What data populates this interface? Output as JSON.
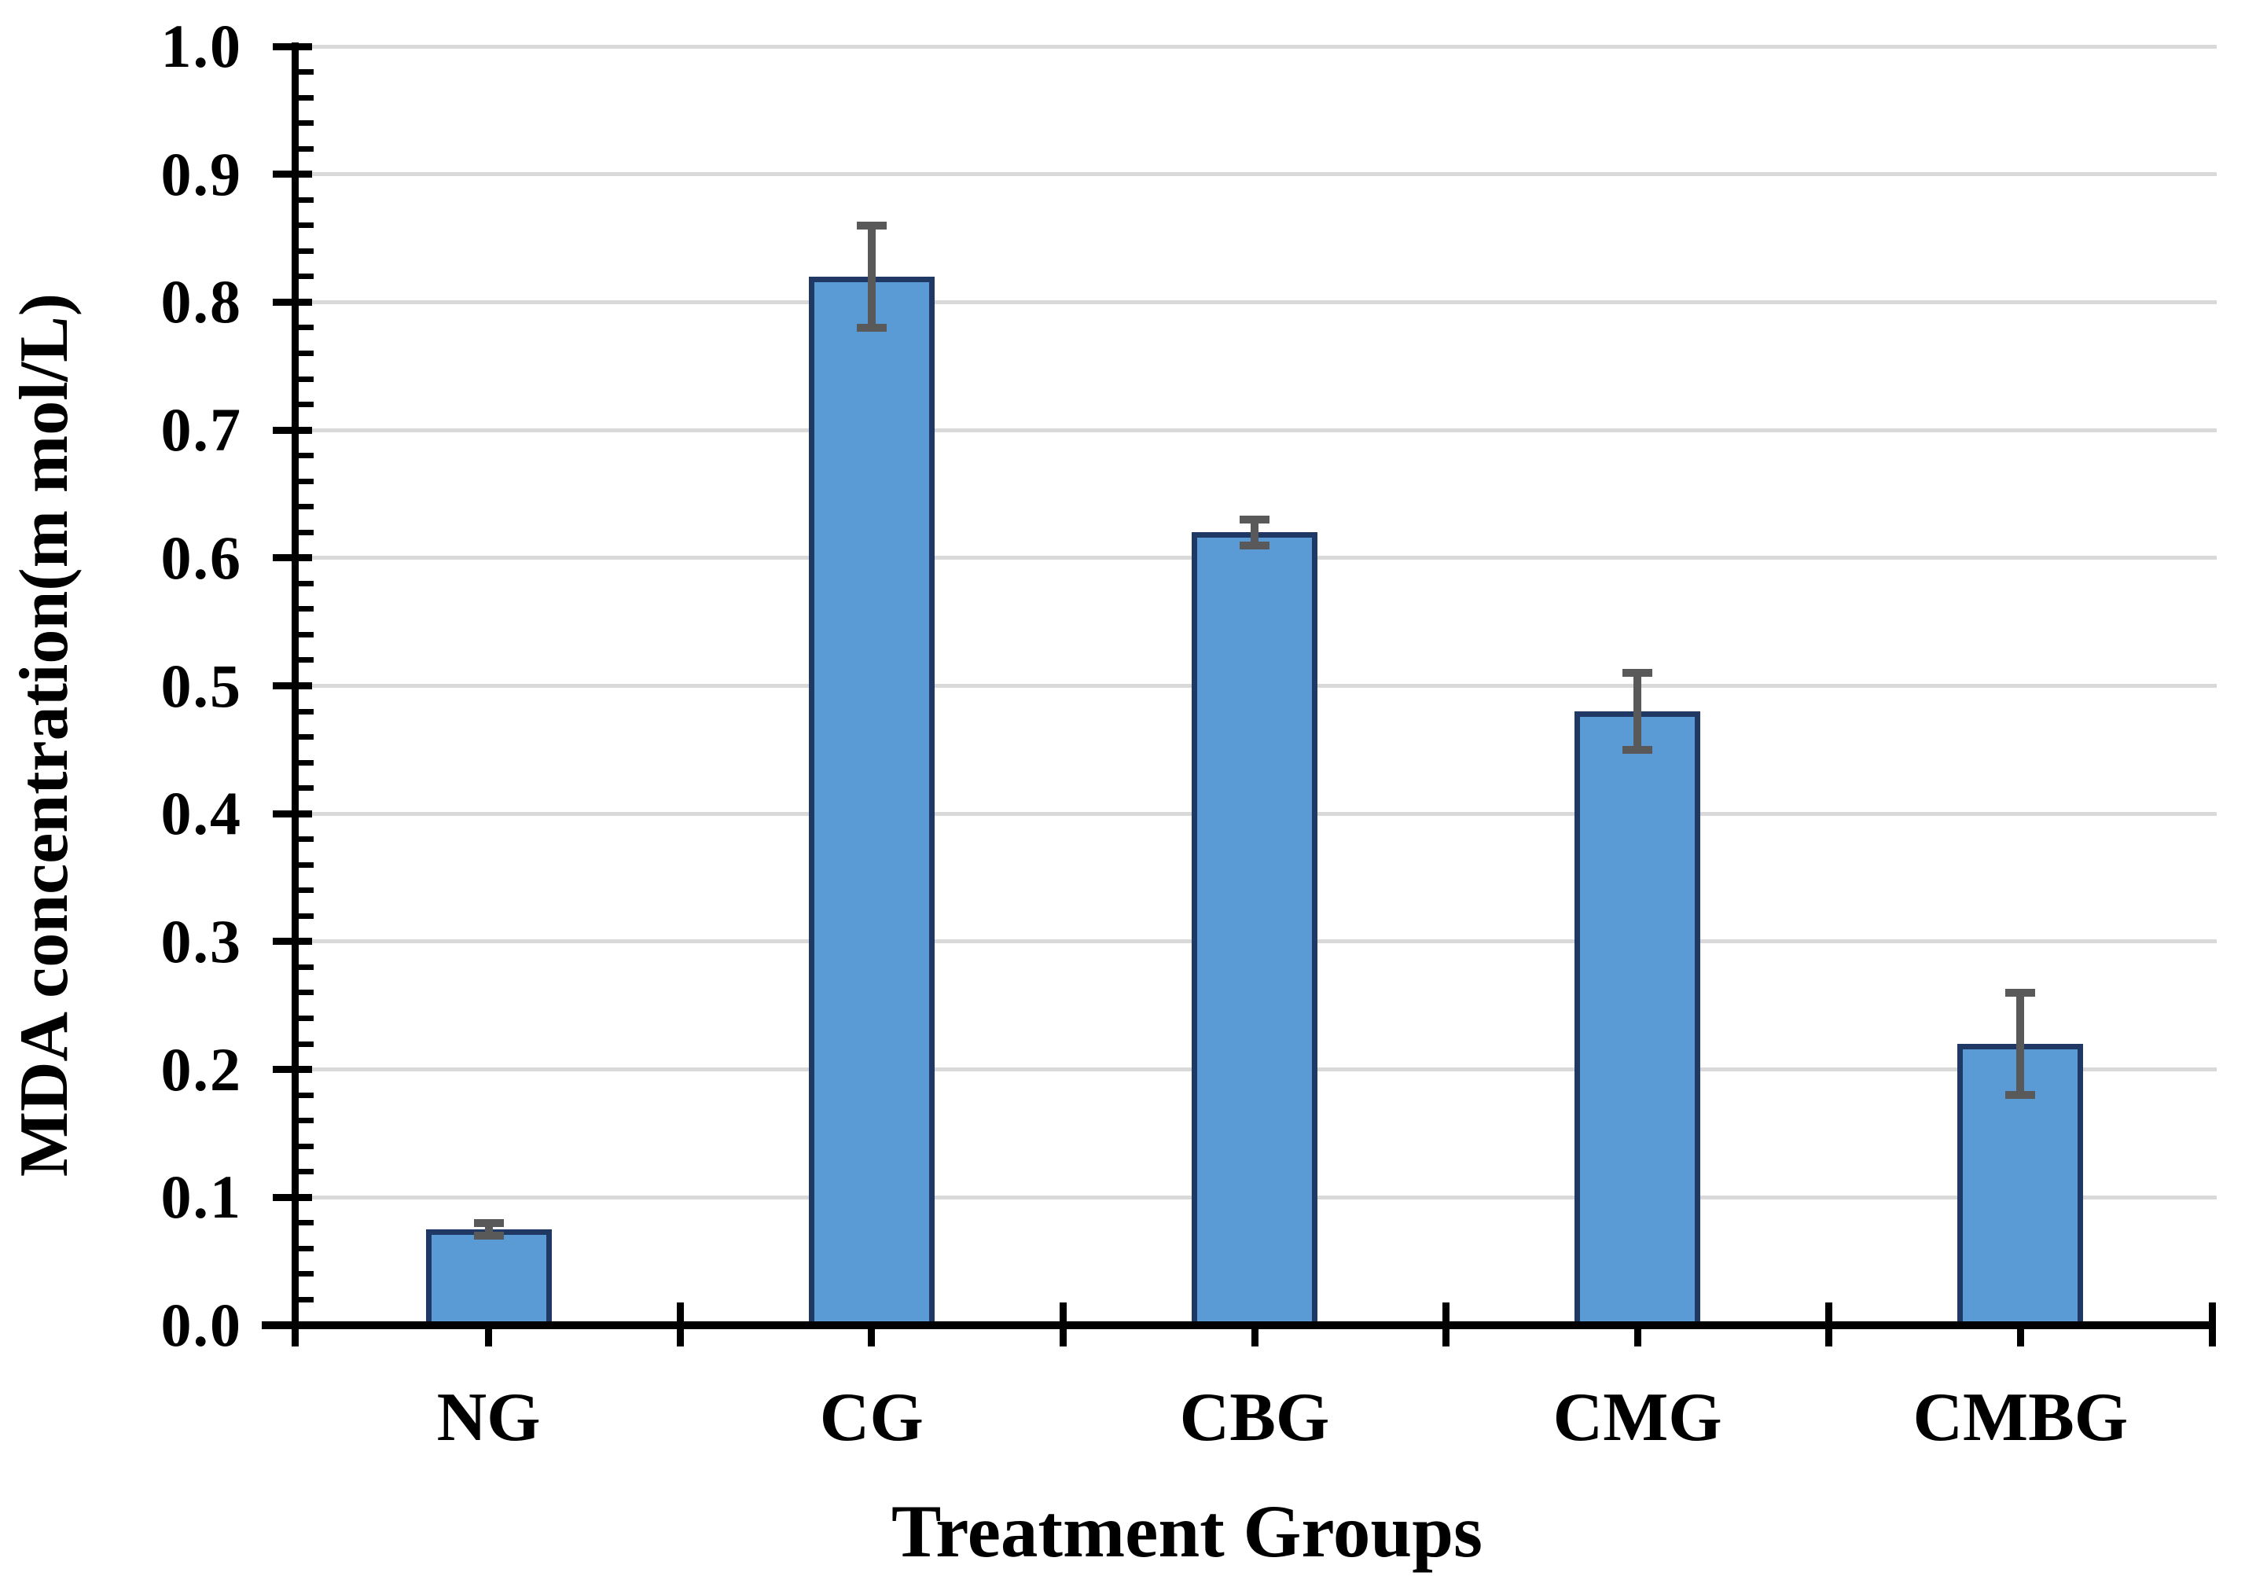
{
  "chart_data": {
    "type": "bar",
    "title": "",
    "xlabel": "Treatment Groups",
    "ylabel": "MDA concentration(m mol/L)",
    "categories": [
      "NG",
      "CG",
      "CBG",
      "CMG",
      "CMBG"
    ],
    "values": [
      0.075,
      0.82,
      0.62,
      0.48,
      0.22
    ],
    "error_bars": [
      0.005,
      0.04,
      0.01,
      0.03,
      0.04
    ],
    "ylim": [
      0.0,
      1.0
    ],
    "ytick_step": 0.1,
    "ytick_labels": [
      "0.0",
      "0.1",
      "0.2",
      "0.3",
      "0.4",
      "0.5",
      "0.6",
      "0.7",
      "0.8",
      "0.9",
      "1.0"
    ],
    "minor_tick_step": 0.02,
    "grid": true,
    "legend_position": "none",
    "colors": {
      "bar_fill": "#5B9BD5",
      "bar_border": "#1F3864",
      "error_bar": "#595959",
      "gridline": "#D9D9D9",
      "axis": "#000000",
      "text": "#000000",
      "background": "#FFFFFF"
    }
  }
}
